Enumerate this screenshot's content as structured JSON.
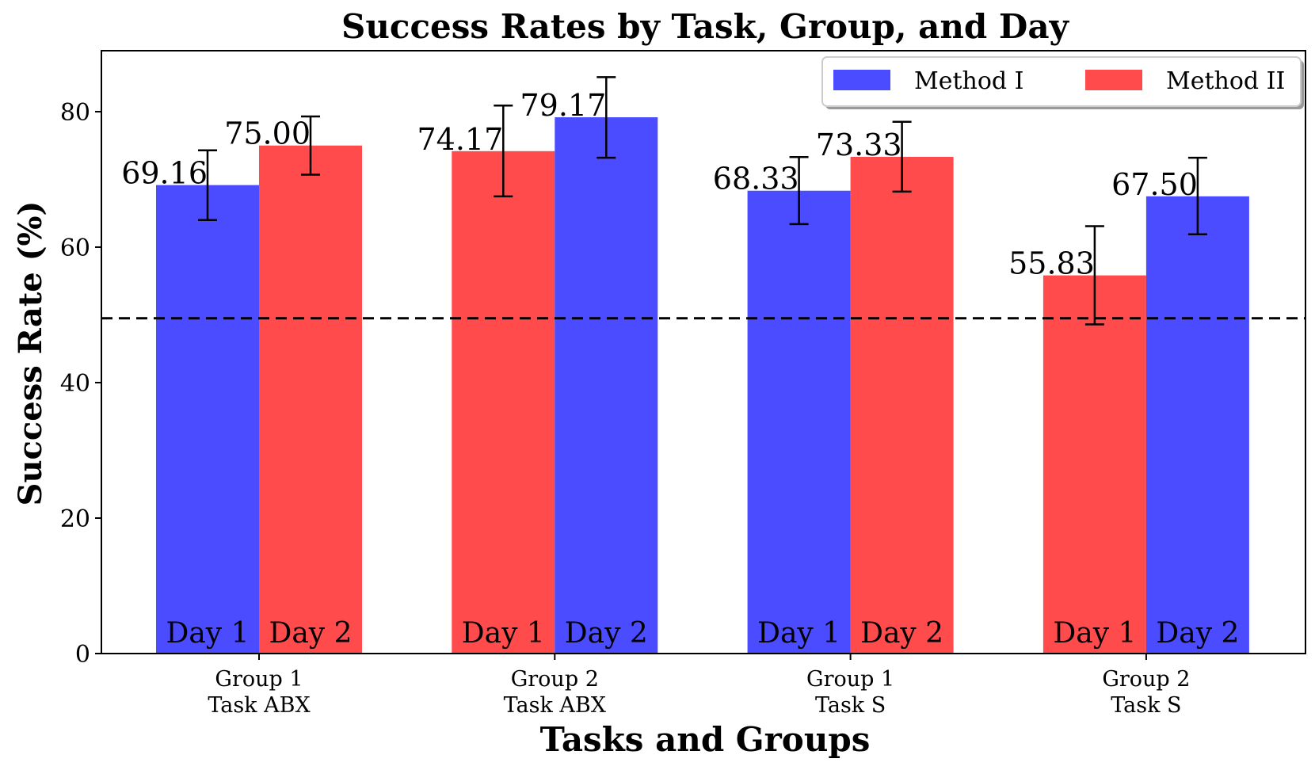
{
  "chart_data": {
    "type": "bar",
    "title": "Success Rates by Task, Group, and Day",
    "xlabel": "Tasks and Groups",
    "ylabel": "Success Rate (%)",
    "ylim": [
      0,
      89
    ],
    "yticks": [
      0,
      20,
      40,
      60,
      80
    ],
    "reference_line": 49.5,
    "categories": [
      {
        "line1": "Group 1",
        "line2": "Task ABX"
      },
      {
        "line1": "Group 2",
        "line2": "Task ABX"
      },
      {
        "line1": "Group 1",
        "line2": "Task S"
      },
      {
        "line1": "Group 2",
        "line2": "Task S"
      }
    ],
    "bars": [
      {
        "category": 0,
        "day": "Day 1",
        "method": "Method I",
        "value": 69.16,
        "label": "69.16",
        "err_low": 64.0,
        "err_high": 74.3
      },
      {
        "category": 0,
        "day": "Day 2",
        "method": "Method II",
        "value": 75.0,
        "label": "75.00",
        "err_low": 70.7,
        "err_high": 79.3
      },
      {
        "category": 1,
        "day": "Day 1",
        "method": "Method II",
        "value": 74.17,
        "label": "74.17",
        "err_low": 67.5,
        "err_high": 80.9
      },
      {
        "category": 1,
        "day": "Day 2",
        "method": "Method I",
        "value": 79.17,
        "label": "79.17",
        "err_low": 73.2,
        "err_high": 85.1
      },
      {
        "category": 2,
        "day": "Day 1",
        "method": "Method I",
        "value": 68.33,
        "label": "68.33",
        "err_low": 63.4,
        "err_high": 73.3
      },
      {
        "category": 2,
        "day": "Day 2",
        "method": "Method II",
        "value": 73.33,
        "label": "73.33",
        "err_low": 68.2,
        "err_high": 78.5
      },
      {
        "category": 3,
        "day": "Day 1",
        "method": "Method II",
        "value": 55.83,
        "label": "55.83",
        "err_low": 48.6,
        "err_high": 63.1
      },
      {
        "category": 3,
        "day": "Day 2",
        "method": "Method I",
        "value": 67.5,
        "label": "67.50",
        "err_low": 61.9,
        "err_high": 73.2
      }
    ],
    "legend": {
      "position": "top-right",
      "entries": [
        {
          "label": "Method I",
          "color": "#4b4bff"
        },
        {
          "label": "Method II",
          "color": "#ff4b4b"
        }
      ]
    },
    "colors": {
      "Method I": "#4b4bff",
      "Method II": "#ff4b4b"
    }
  }
}
